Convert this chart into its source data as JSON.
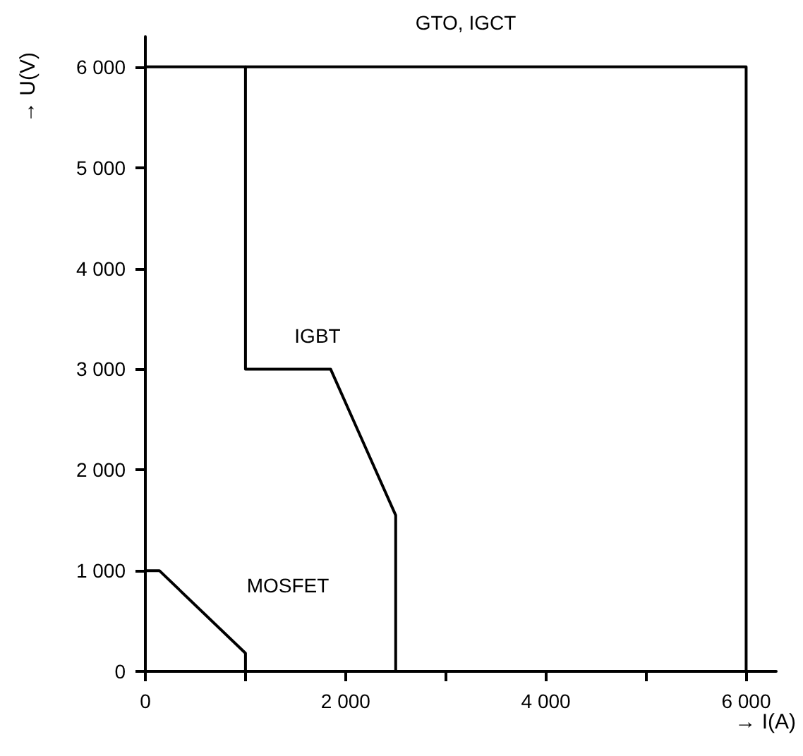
{
  "chart_data": {
    "type": "line",
    "xlabel": "→ I(A)",
    "ylabel": "→ U(V)",
    "xlim": [
      0,
      6300
    ],
    "ylim": [
      0,
      6300
    ],
    "xticks": [
      0,
      {
        "value": 1000,
        "label": null
      },
      {
        "value": 2000,
        "label": "2 000"
      },
      {
        "value": 3000,
        "label": null
      },
      {
        "value": 4000,
        "label": "4 000"
      },
      {
        "value": 5000,
        "label": null
      },
      {
        "value": 6000,
        "label": "6 000"
      }
    ],
    "yticks": [
      0,
      {
        "value": 1000,
        "label": "1 000"
      },
      {
        "value": 2000,
        "label": "2 000"
      },
      {
        "value": 3000,
        "label": "3 000"
      },
      {
        "value": 4000,
        "label": "4 000"
      },
      {
        "value": 5000,
        "label": "5 000"
      },
      {
        "value": 6000,
        "label": "6 000"
      }
    ],
    "series": [
      {
        "color": "#000000",
        "x": [
          0,
          6000,
          6000
        ],
        "values": [
          6000,
          6000,
          0
        ]
      },
      {
        "color": "#000000",
        "x": [
          1000,
          1000,
          1850,
          2500,
          2500
        ],
        "values": [
          6000,
          3000,
          3000,
          1550,
          0
        ]
      },
      {
        "color": "#000000",
        "x": [
          0,
          140,
          1000,
          1000
        ],
        "values": [
          1000,
          1000,
          180,
          0
        ]
      }
    ],
    "annotations": [
      "GTO, IGCT",
      "IGBT",
      "MOSFET"
    ],
    "grid": false,
    "marker": "none",
    "line_style": "solid"
  }
}
